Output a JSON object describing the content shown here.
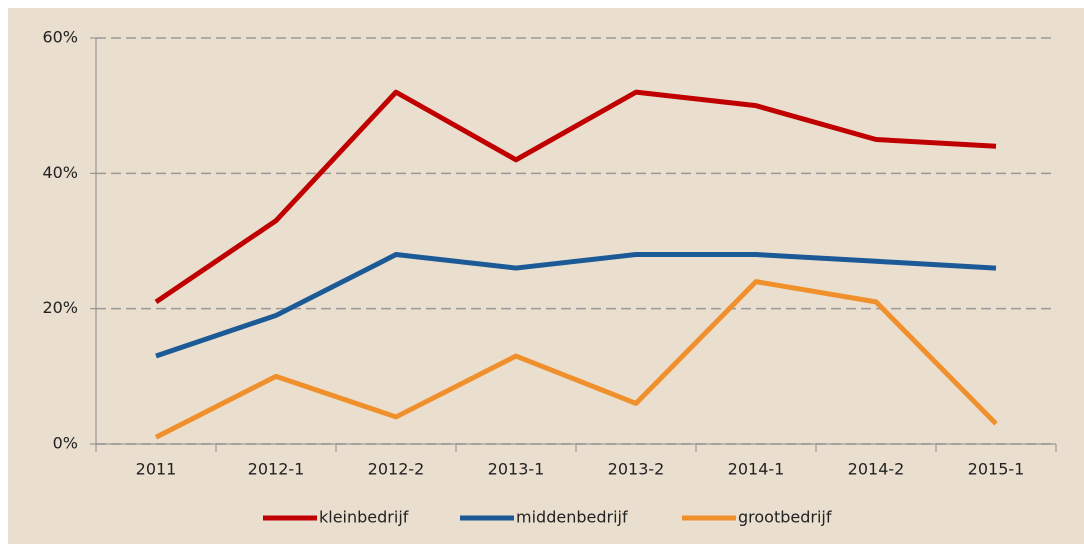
{
  "chart_data": {
    "type": "line",
    "categories": [
      "2011",
      "2012-1",
      "2012-2",
      "2013-1",
      "2013-2",
      "2014-1",
      "2014-2",
      "2015-1"
    ],
    "series": [
      {
        "name": "kleinbedrijf",
        "color": "#c00000",
        "values": [
          21,
          33,
          52,
          42,
          52,
          50,
          45,
          44
        ]
      },
      {
        "name": "middenbedrijf",
        "color": "#1b5a96",
        "values": [
          13,
          19,
          28,
          26,
          28,
          28,
          27,
          26
        ]
      },
      {
        "name": "grootbedrijf",
        "color": "#f0902c",
        "values": [
          1,
          10,
          4,
          13,
          6,
          24,
          21,
          3
        ]
      }
    ],
    "ylim": [
      0,
      60
    ],
    "yticks": [
      {
        "value": 0,
        "label": "0%"
      },
      {
        "value": 20,
        "label": "20%"
      },
      {
        "value": 40,
        "label": "40%"
      },
      {
        "value": 60,
        "label": "60%"
      }
    ],
    "grid": true,
    "legend": "bottom"
  }
}
